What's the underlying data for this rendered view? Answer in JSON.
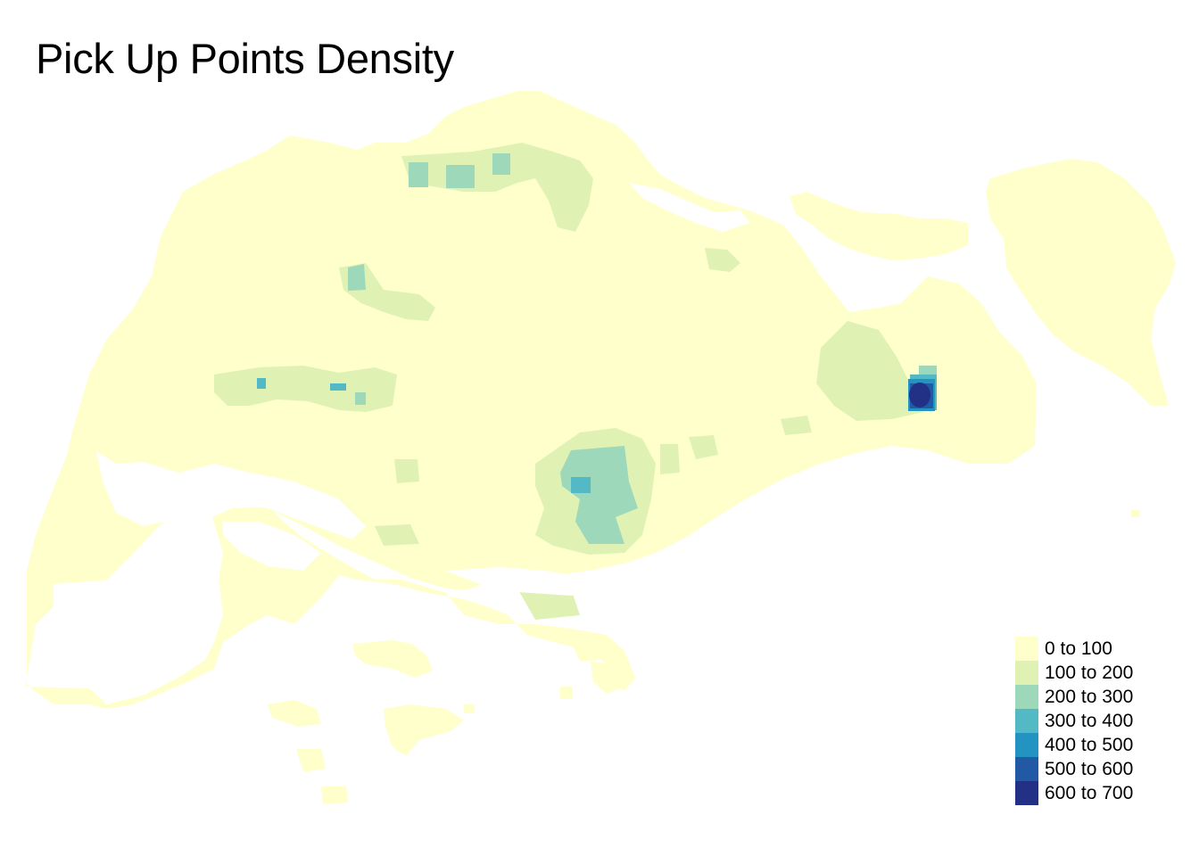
{
  "title": "Pick Up Points Density",
  "legend": {
    "items": [
      {
        "label": "0 to 100",
        "color": "#ffffcc"
      },
      {
        "label": "100 to 200",
        "color": "#dff2b4"
      },
      {
        "label": "200 to 300",
        "color": "#9ed8bb"
      },
      {
        "label": "300 to 400",
        "color": "#53b9c4"
      },
      {
        "label": "400 to 500",
        "color": "#2394c2"
      },
      {
        "label": "500 to 600",
        "color": "#2159a4"
      },
      {
        "label": "600 to 700",
        "color": "#223085"
      }
    ]
  }
}
